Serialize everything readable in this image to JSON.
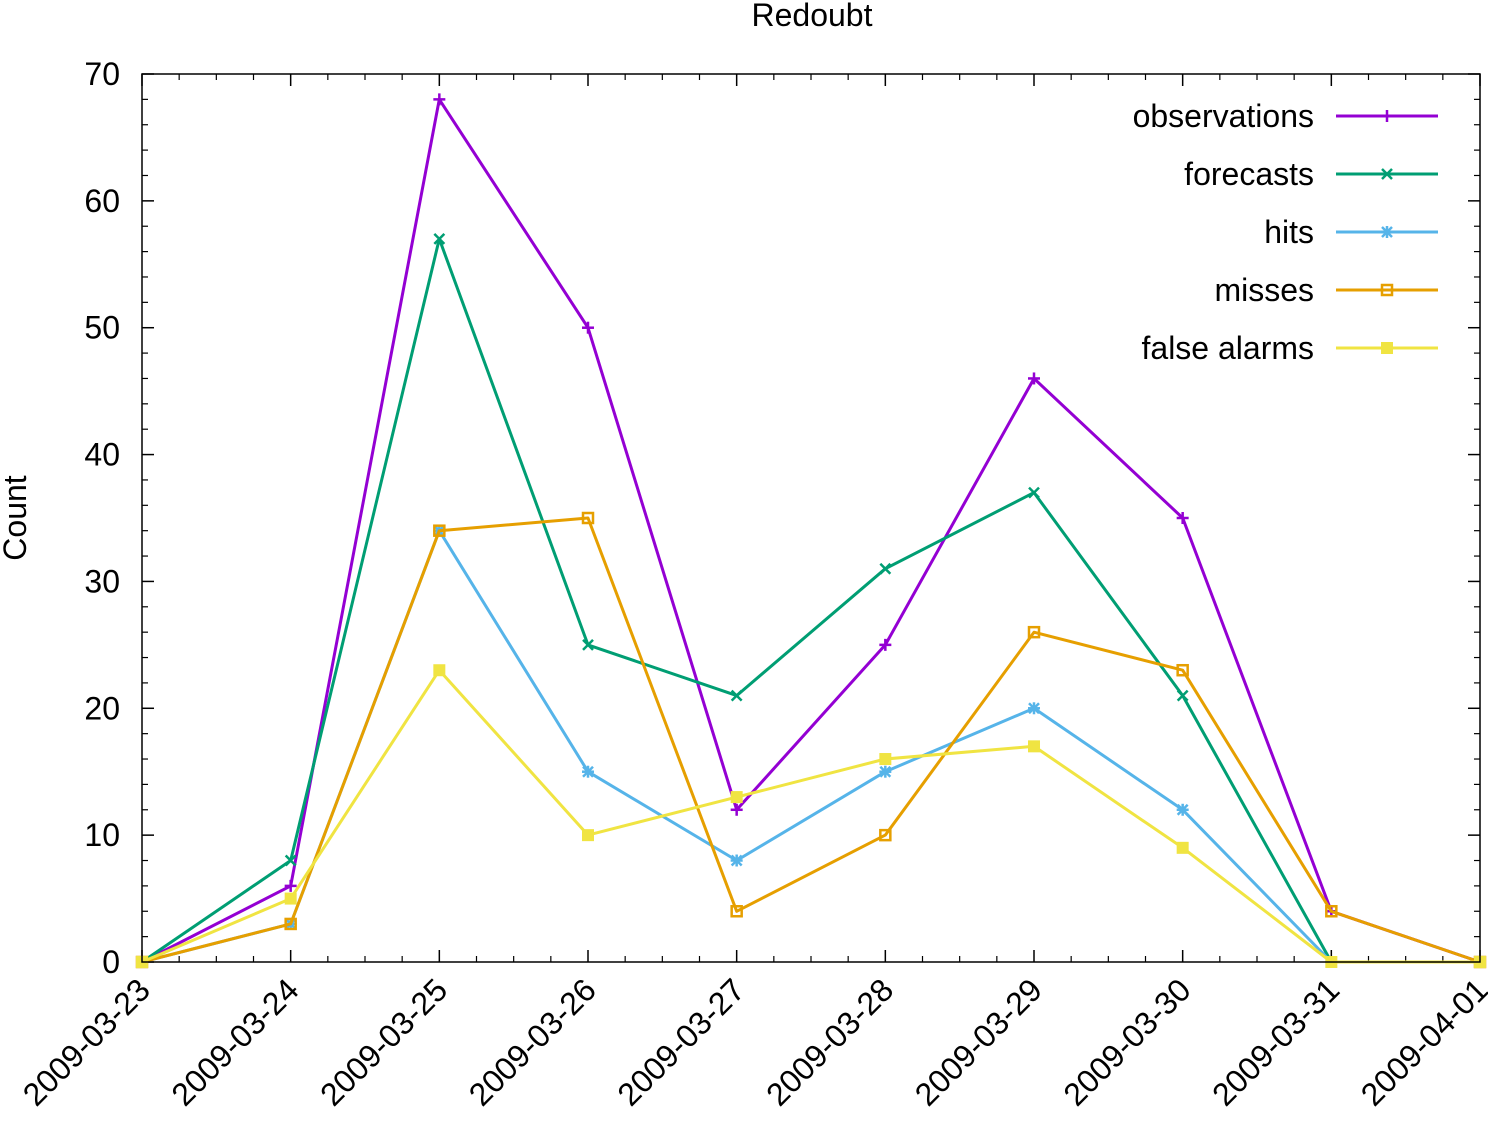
{
  "chart_data": {
    "type": "line",
    "title": "Redoubt",
    "xlabel": "",
    "ylabel": "Count",
    "x": [
      "2009-03-23",
      "2009-03-24",
      "2009-03-25",
      "2009-03-26",
      "2009-03-27",
      "2009-03-28",
      "2009-03-29",
      "2009-03-30",
      "2009-03-31",
      "2009-04-01"
    ],
    "ylim": [
      0,
      70
    ],
    "yticks": [
      0,
      10,
      20,
      30,
      40,
      50,
      60,
      70
    ],
    "grid": false,
    "legend_position": "top-right",
    "series": [
      {
        "name": "observations",
        "color": "#9400d3",
        "marker": "plus",
        "values": [
          0,
          6,
          68,
          50,
          12,
          25,
          46,
          35,
          4,
          0
        ]
      },
      {
        "name": "forecasts",
        "color": "#009e73",
        "marker": "cross",
        "values": [
          0,
          8,
          57,
          25,
          21,
          31,
          37,
          21,
          0,
          0
        ]
      },
      {
        "name": "hits",
        "color": "#56b4e9",
        "marker": "star",
        "values": [
          0,
          3,
          34,
          15,
          8,
          15,
          20,
          12,
          0,
          0
        ]
      },
      {
        "name": "misses",
        "color": "#e69f00",
        "marker": "open-square",
        "values": [
          0,
          3,
          34,
          35,
          4,
          10,
          26,
          23,
          4,
          0
        ]
      },
      {
        "name": "false alarms",
        "color": "#f0e442",
        "marker": "filled-square",
        "values": [
          0,
          5,
          23,
          10,
          13,
          16,
          17,
          9,
          0,
          0
        ]
      }
    ]
  }
}
